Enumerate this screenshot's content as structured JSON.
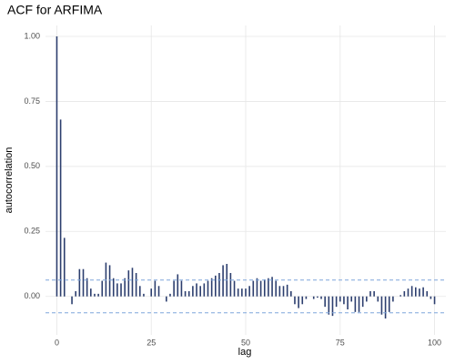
{
  "chart_data": {
    "type": "acf",
    "title": "ACF for ARFIMA",
    "x_label": "lag",
    "y_label": "autocorrelation",
    "x": [
      0,
      1,
      2,
      3,
      4,
      5,
      6,
      7,
      8,
      9,
      10,
      11,
      12,
      13,
      14,
      15,
      16,
      17,
      18,
      19,
      20,
      21,
      22,
      23,
      24,
      25,
      26,
      27,
      28,
      29,
      30,
      31,
      32,
      33,
      34,
      35,
      36,
      37,
      38,
      39,
      40,
      41,
      42,
      43,
      44,
      45,
      46,
      47,
      48,
      49,
      50,
      51,
      52,
      53,
      54,
      55,
      56,
      57,
      58,
      59,
      60,
      61,
      62,
      63,
      64,
      65,
      66,
      67,
      68,
      69,
      70,
      71,
      72,
      73,
      74,
      75,
      76,
      77,
      78,
      79,
      80,
      81,
      82,
      83,
      84,
      85,
      86,
      87,
      88,
      89,
      90,
      91,
      92,
      93,
      94,
      95,
      96,
      97,
      98,
      99,
      100
    ],
    "series": [
      {
        "color": "#2c3e6e",
        "values": [
          1.0,
          0.68,
          0.225,
          0.0,
          -0.03,
          0.02,
          0.105,
          0.105,
          0.07,
          0.03,
          0.01,
          0.01,
          0.06,
          0.13,
          0.12,
          0.07,
          0.05,
          0.05,
          0.07,
          0.1,
          0.11,
          0.09,
          0.04,
          0.01,
          0.0,
          0.03,
          0.06,
          0.04,
          0.0,
          -0.02,
          0.01,
          0.06,
          0.085,
          0.06,
          0.02,
          0.02,
          0.04,
          0.05,
          0.04,
          0.05,
          0.06,
          0.07,
          0.08,
          0.09,
          0.12,
          0.125,
          0.09,
          0.06,
          0.03,
          0.03,
          0.03,
          0.04,
          0.06,
          0.07,
          0.06,
          0.065,
          0.07,
          0.075,
          0.06,
          0.04,
          0.04,
          0.045,
          0.02,
          -0.03,
          -0.045,
          -0.03,
          -0.01,
          0.0,
          -0.01,
          -0.005,
          -0.01,
          -0.04,
          -0.07,
          -0.075,
          -0.04,
          -0.02,
          -0.03,
          -0.05,
          -0.02,
          -0.06,
          -0.06,
          -0.04,
          -0.02,
          0.02,
          0.02,
          -0.02,
          -0.07,
          -0.085,
          -0.06,
          -0.02,
          0.0,
          0.005,
          0.02,
          0.03,
          0.04,
          0.035,
          0.03,
          0.035,
          0.02,
          -0.01,
          -0.03
        ]
      }
    ],
    "conf_lines": [
      0.063,
      -0.063
    ],
    "conf_color": "#7ea6dc",
    "xlim": [
      -3,
      103
    ],
    "ylim": [
      -0.148,
      1.042
    ],
    "xticks": [
      0,
      25,
      50,
      75,
      100
    ],
    "yticks": [
      {
        "value": 0,
        "label": "0.00"
      },
      {
        "value": 0.25,
        "label": "0.25"
      },
      {
        "value": 0.5,
        "label": "0.50"
      },
      {
        "value": 0.75,
        "label": "0.75"
      },
      {
        "value": 1,
        "label": "1.00"
      }
    ],
    "grid": true
  }
}
